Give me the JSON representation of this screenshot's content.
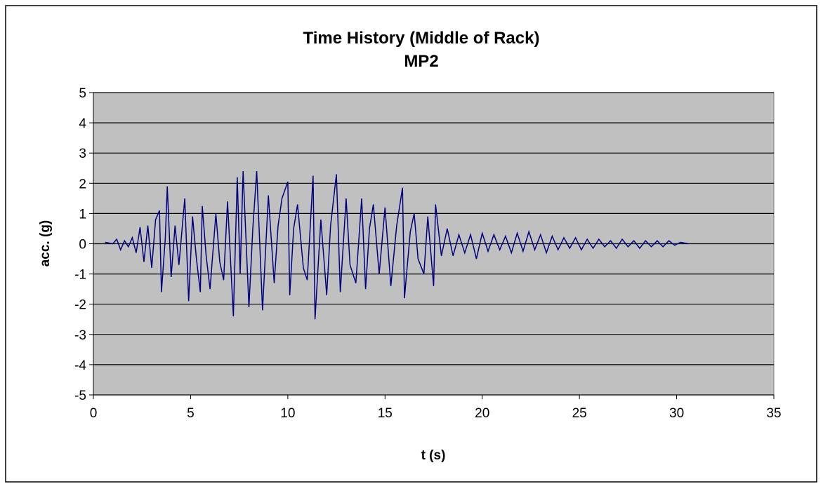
{
  "chart_data": {
    "type": "line",
    "title": "Time History (Middle of Rack)",
    "subtitle": "MP2",
    "x_label": "t (s)",
    "y_label": "acc. (g)",
    "xlim": [
      0,
      35
    ],
    "xticks": [
      0,
      5,
      10,
      15,
      20,
      25,
      30,
      35
    ],
    "ylim": [
      -5,
      5
    ],
    "yticks": [
      -5,
      -4,
      -3,
      -2,
      -1,
      0,
      1,
      2,
      3,
      4,
      5
    ],
    "grid": true,
    "series": [
      {
        "color": "#000080",
        "x": [
          0.6,
          1.0,
          1.2,
          1.4,
          1.6,
          1.8,
          2.0,
          2.2,
          2.4,
          2.6,
          2.8,
          3.0,
          3.2,
          3.4,
          3.5,
          3.7,
          3.8,
          4.0,
          4.2,
          4.4,
          4.7,
          4.9,
          5.1,
          5.3,
          5.5,
          5.6,
          5.8,
          6.0,
          6.3,
          6.5,
          6.7,
          6.9,
          7.2,
          7.4,
          7.55,
          7.7,
          8.0,
          8.2,
          8.4,
          8.7,
          9.0,
          9.3,
          9.5,
          9.7,
          10.0,
          10.1,
          10.3,
          10.5,
          10.8,
          11.0,
          11.3,
          11.4,
          11.7,
          12.0,
          12.2,
          12.5,
          12.7,
          13.0,
          13.2,
          13.5,
          13.8,
          14.0,
          14.2,
          14.4,
          14.7,
          15.0,
          15.3,
          15.6,
          15.9,
          16.0,
          16.3,
          16.5,
          16.7,
          17.0,
          17.2,
          17.5,
          17.6,
          17.9,
          18.2,
          18.5,
          18.8,
          19.1,
          19.4,
          19.7,
          20.0,
          20.3,
          20.6,
          20.9,
          21.2,
          21.5,
          21.8,
          22.1,
          22.4,
          22.7,
          23.0,
          23.3,
          23.6,
          23.9,
          24.2,
          24.5,
          24.8,
          25.1,
          25.4,
          25.7,
          26.0,
          26.3,
          26.6,
          26.9,
          27.2,
          27.5,
          27.8,
          28.1,
          28.4,
          28.7,
          29.0,
          29.3,
          29.6,
          29.9,
          30.2,
          30.6
        ],
        "values": [
          0.05,
          0.0,
          0.15,
          -0.2,
          0.1,
          -0.1,
          0.2,
          -0.3,
          0.55,
          -0.6,
          0.6,
          -0.8,
          0.8,
          1.1,
          -1.6,
          0.2,
          1.9,
          -1.1,
          0.6,
          -0.7,
          1.5,
          -1.9,
          0.9,
          -0.5,
          -1.6,
          1.25,
          -0.4,
          -1.5,
          1.0,
          -0.6,
          -1.2,
          1.4,
          -2.4,
          2.2,
          -1.0,
          2.4,
          -2.1,
          0.5,
          2.4,
          -2.2,
          1.6,
          -1.3,
          0.6,
          1.5,
          2.05,
          -1.7,
          0.5,
          1.3,
          -0.8,
          -1.2,
          2.25,
          -2.5,
          0.8,
          -1.7,
          0.6,
          2.3,
          -1.6,
          1.5,
          -0.7,
          -1.3,
          1.5,
          -1.5,
          0.5,
          1.3,
          -1.0,
          1.2,
          -1.4,
          0.6,
          1.85,
          -1.8,
          0.4,
          1.0,
          -0.5,
          -1.0,
          0.9,
          -1.4,
          1.3,
          -0.4,
          0.5,
          -0.4,
          0.3,
          -0.3,
          0.3,
          -0.5,
          0.35,
          -0.25,
          0.3,
          -0.2,
          0.25,
          -0.3,
          0.35,
          -0.25,
          0.4,
          -0.2,
          0.3,
          -0.3,
          0.25,
          -0.2,
          0.2,
          -0.15,
          0.2,
          -0.2,
          0.15,
          -0.15,
          0.15,
          -0.1,
          0.1,
          -0.15,
          0.15,
          -0.1,
          0.1,
          -0.15,
          0.1,
          -0.1,
          0.1,
          -0.1,
          0.1,
          -0.05,
          0.05,
          0.0
        ]
      }
    ]
  }
}
